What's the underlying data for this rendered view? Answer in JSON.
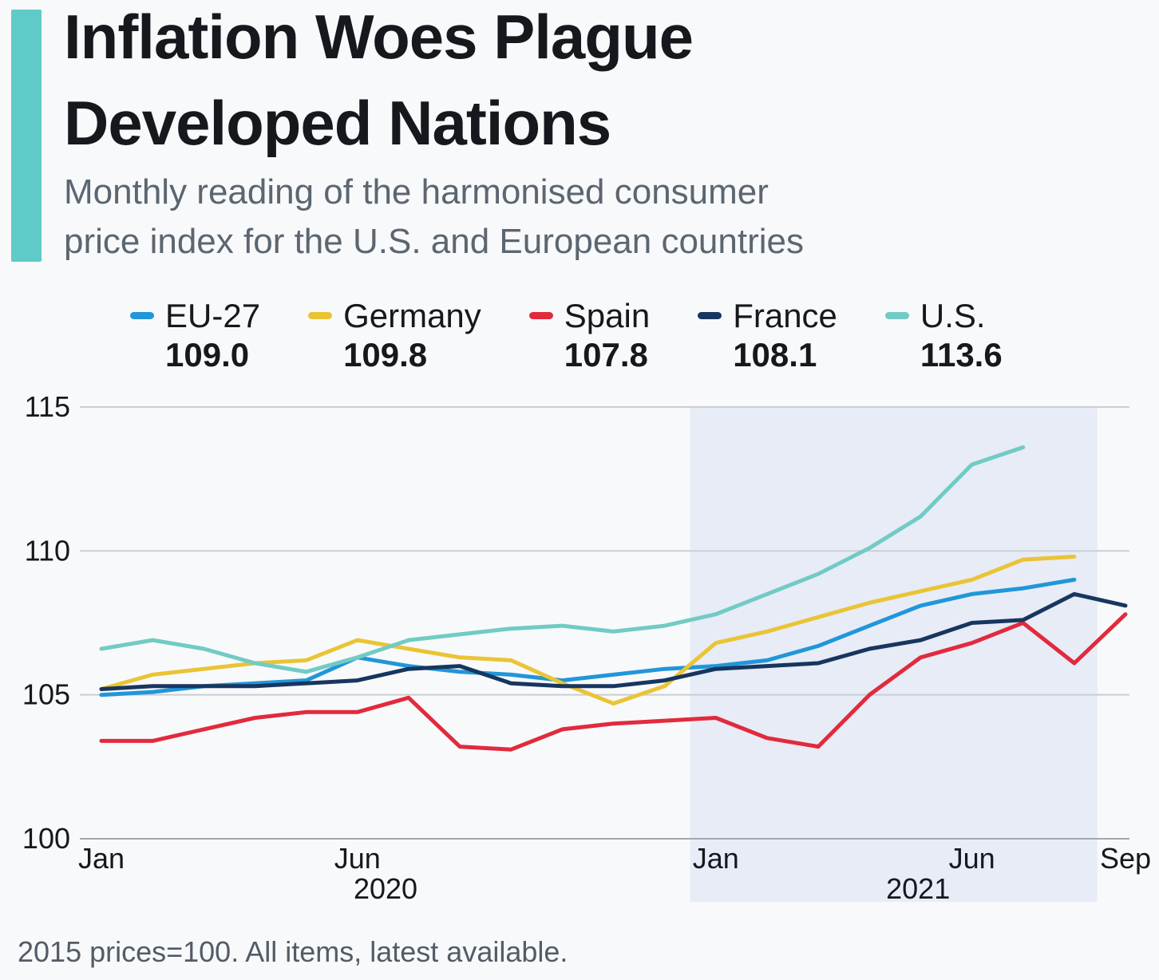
{
  "page": {
    "background_color": "#f8f9fb"
  },
  "header": {
    "accent_color": "#5fcac6",
    "title_lines": [
      "Inflation Woes Plague",
      "Developed Nations"
    ],
    "subtitle_lines": [
      "Monthly reading of the harmonised consumer",
      "price index for the U.S. and European countries"
    ]
  },
  "legend": {
    "items": [
      {
        "label": "EU-27",
        "value": "109.0",
        "color": "#2196d9"
      },
      {
        "label": "Germany",
        "value": "109.8",
        "color": "#eac435"
      },
      {
        "label": "Spain",
        "value": "107.8",
        "color": "#e22a3d"
      },
      {
        "label": "France",
        "value": "108.1",
        "color": "#17365f"
      },
      {
        "label": "U.S.",
        "value": "113.6",
        "color": "#71cbc4"
      }
    ]
  },
  "chart_data": {
    "type": "line",
    "title": "Inflation Woes Plague Developed Nations",
    "subtitle": "Monthly reading of the harmonised consumer price index for the U.S. and European countries",
    "xlabel": "",
    "ylabel": "",
    "ylim": [
      100,
      115
    ],
    "yticks": [
      100,
      105,
      110,
      115
    ],
    "grid_color": "#caced4",
    "axis_color": "#a2a8ae",
    "x": [
      "Jan 2020",
      "Feb 2020",
      "Mar 2020",
      "Apr 2020",
      "May 2020",
      "Jun 2020",
      "Jul 2020",
      "Aug 2020",
      "Sep 2020",
      "Oct 2020",
      "Nov 2020",
      "Dec 2020",
      "Jan 2021",
      "Feb 2021",
      "Mar 2021",
      "Apr 2021",
      "May 2021",
      "Jun 2021",
      "Jul 2021",
      "Aug 2021",
      "Sep 2021"
    ],
    "x_ticks": [
      {
        "label": "Jan",
        "index": 0
      },
      {
        "label": "Jun",
        "index": 5
      },
      {
        "label": "Jan",
        "index": 12
      },
      {
        "label": "Jun",
        "index": 17
      },
      {
        "label": "Sep",
        "index": 20
      }
    ],
    "year_labels": [
      {
        "label": "2020",
        "index": 5.55
      },
      {
        "label": "2021",
        "index": 15.95
      }
    ],
    "highlight_band": {
      "start_index": 11.5,
      "end_index": 19.45,
      "color": "#e7ecf7"
    },
    "series": [
      {
        "name": "EU-27",
        "color": "#2196d9",
        "latest": 109.0,
        "values": [
          105.0,
          105.1,
          105.3,
          105.4,
          105.5,
          106.3,
          106.0,
          105.8,
          105.7,
          105.5,
          105.7,
          105.9,
          106.0,
          106.2,
          106.7,
          107.4,
          108.1,
          108.5,
          108.7,
          109.0,
          null
        ]
      },
      {
        "name": "Germany",
        "color": "#eac435",
        "latest": 109.8,
        "values": [
          105.2,
          105.7,
          105.9,
          106.1,
          106.2,
          106.9,
          106.6,
          106.3,
          106.2,
          105.4,
          104.7,
          105.3,
          106.8,
          107.2,
          107.7,
          108.2,
          108.6,
          109.0,
          109.7,
          109.8,
          null
        ]
      },
      {
        "name": "Spain",
        "color": "#e22a3d",
        "latest": 107.8,
        "values": [
          103.4,
          103.4,
          103.8,
          104.2,
          104.4,
          104.4,
          104.9,
          103.2,
          103.1,
          103.8,
          104.0,
          104.1,
          104.2,
          103.5,
          103.2,
          105.0,
          106.3,
          106.8,
          107.5,
          106.1,
          107.8
        ]
      },
      {
        "name": "France",
        "color": "#17365f",
        "latest": 108.1,
        "values": [
          105.2,
          105.3,
          105.3,
          105.3,
          105.4,
          105.5,
          105.9,
          106.0,
          105.4,
          105.3,
          105.3,
          105.5,
          105.9,
          106.0,
          106.1,
          106.6,
          106.9,
          107.5,
          107.6,
          108.5,
          108.1
        ]
      },
      {
        "name": "U.S.",
        "color": "#71cbc4",
        "latest": 113.6,
        "values": [
          106.6,
          106.9,
          106.6,
          106.1,
          105.8,
          106.3,
          106.9,
          107.1,
          107.3,
          107.4,
          107.2,
          107.4,
          107.8,
          108.5,
          109.2,
          110.1,
          111.2,
          113.0,
          113.6,
          null,
          null
        ]
      }
    ]
  },
  "footnote": "2015 prices=100. All items, latest available."
}
